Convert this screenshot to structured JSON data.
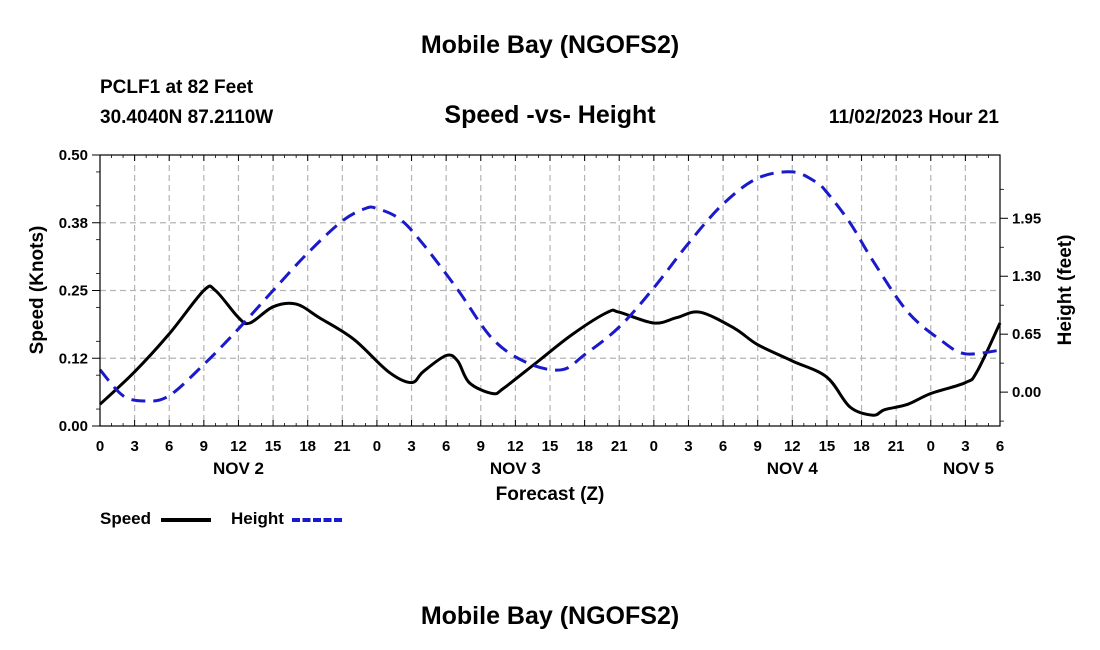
{
  "header": {
    "title": "Mobile Bay (NGOFS2)",
    "station": "PCLF1 at 82 Feet",
    "coords": "30.4040N  87.2110W",
    "subtitle": "Speed -vs- Height",
    "timestamp": "11/02/2023 Hour 21"
  },
  "footer": {
    "title": "Mobile Bay (NGOFS2)"
  },
  "legend": {
    "speed_label": "Speed",
    "height_label": "Height"
  },
  "colors": {
    "speed": "#000000",
    "height": "#1a1acc",
    "grid": "#b4b4b4"
  },
  "chart_data": {
    "type": "line",
    "title": "Speed -vs- Height",
    "xlabel": "Forecast (Z)",
    "ylabel_left": "Speed (Knots)",
    "ylabel_right": "Height (feet)",
    "x_unit": "hours from Nov 2 00Z",
    "xlim": [
      0,
      78
    ],
    "ylim_left": [
      0,
      0.5
    ],
    "ylim_right": [
      -0.38,
      2.66
    ],
    "x_ticks": [
      0,
      3,
      6,
      9,
      12,
      15,
      18,
      21,
      24,
      27,
      30,
      33,
      36,
      39,
      42,
      45,
      48,
      51,
      54,
      57,
      60,
      63,
      66,
      69,
      72,
      75,
      78
    ],
    "x_tick_labels": [
      "0",
      "3",
      "6",
      "9",
      "12",
      "15",
      "18",
      "21",
      "0",
      "3",
      "6",
      "9",
      "12",
      "15",
      "18",
      "21",
      "0",
      "3",
      "6",
      "9",
      "12",
      "15",
      "18",
      "21",
      "0",
      "3",
      "6"
    ],
    "date_labels": [
      {
        "x": 12,
        "label": "NOV 2"
      },
      {
        "x": 36,
        "label": "NOV 3"
      },
      {
        "x": 60,
        "label": "NOV 4"
      },
      {
        "x": 78,
        "label": "NOV 5"
      }
    ],
    "left_ticks": [
      0.0,
      0.125,
      0.25,
      0.375,
      0.5
    ],
    "left_tick_labels": [
      "0.00",
      "0.12",
      "0.25",
      "0.38",
      "0.50"
    ],
    "right_ticks": [
      0.0,
      0.65,
      1.3,
      1.95
    ],
    "right_tick_labels": [
      "0.00",
      "0.65",
      "1.30",
      "1.95"
    ],
    "grid": true,
    "series": [
      {
        "name": "Speed",
        "axis": "left",
        "style": "solid",
        "x": [
          0,
          3,
          6,
          9,
          10,
          12,
          13,
          15,
          17,
          19,
          22,
          25,
          27,
          28,
          30,
          31,
          32,
          34,
          35,
          38,
          41,
          44,
          45,
          48,
          50,
          52,
          55,
          57,
          60,
          63,
          65,
          67,
          68,
          70,
          72,
          75,
          76,
          78
        ],
        "y": [
          0.04,
          0.1,
          0.17,
          0.25,
          0.25,
          0.2,
          0.19,
          0.22,
          0.225,
          0.2,
          0.16,
          0.1,
          0.08,
          0.1,
          0.13,
          0.12,
          0.08,
          0.06,
          0.07,
          0.12,
          0.17,
          0.21,
          0.21,
          0.19,
          0.2,
          0.21,
          0.18,
          0.15,
          0.12,
          0.09,
          0.035,
          0.02,
          0.03,
          0.04,
          0.06,
          0.08,
          0.1,
          0.19
        ]
      },
      {
        "name": "Height",
        "axis": "right",
        "style": "dashed",
        "x": [
          0,
          2,
          4,
          6,
          9,
          12,
          15,
          18,
          21,
          23,
          24,
          26,
          28,
          31,
          34,
          37,
          40,
          42,
          45,
          48,
          51,
          54,
          57,
          60,
          62,
          63,
          65,
          67,
          70,
          73,
          75,
          78
        ],
        "y": [
          0.25,
          -0.04,
          -0.1,
          -0.04,
          0.31,
          0.71,
          1.14,
          1.56,
          1.92,
          2.06,
          2.06,
          1.94,
          1.66,
          1.15,
          0.6,
          0.33,
          0.25,
          0.42,
          0.73,
          1.17,
          1.67,
          2.11,
          2.4,
          2.47,
          2.36,
          2.24,
          1.9,
          1.47,
          0.9,
          0.57,
          0.43,
          0.47
        ]
      }
    ]
  }
}
